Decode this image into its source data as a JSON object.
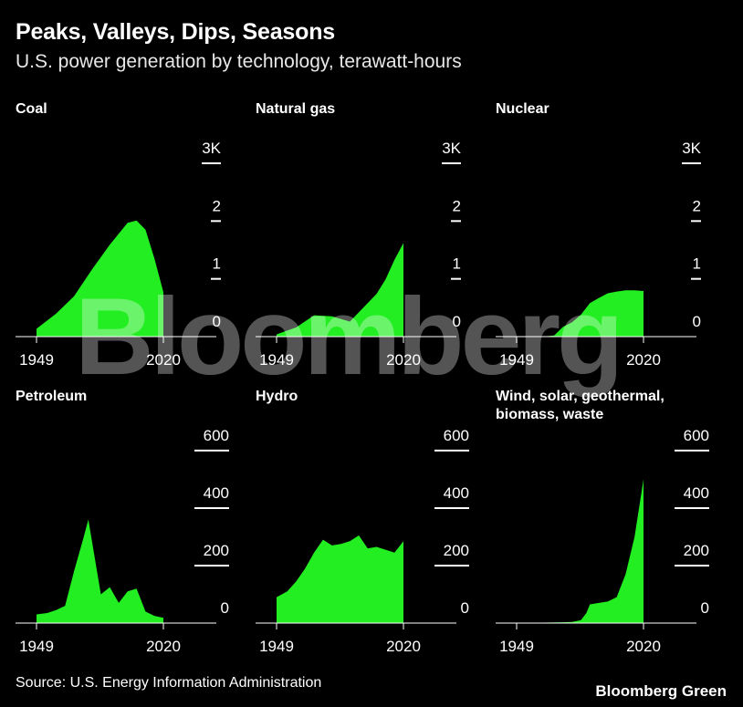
{
  "header": {
    "title": "Peaks, Valleys, Dips, Seasons",
    "subtitle": "U.S. power generation by technology, terawatt-hours"
  },
  "footer": {
    "source": "Source: U.S. Energy Information Administration",
    "brand": "Bloomberg Green"
  },
  "watermark": "Bloomberg",
  "colors": {
    "series": "#22ee22",
    "background": "#000000",
    "text": "#ffffff"
  },
  "chart_data": [
    {
      "type": "area",
      "title": "Coal",
      "x": [
        1949,
        1960,
        1970,
        1980,
        1990,
        2000,
        2005,
        2010,
        2015,
        2020
      ],
      "values": [
        135,
        400,
        700,
        1160,
        1590,
        1970,
        2010,
        1850,
        1350,
        770
      ],
      "ylim": [
        0,
        3000
      ],
      "yticks": [
        "0",
        "1",
        "2",
        "3K"
      ],
      "xticks": [
        "1949",
        "2020"
      ]
    },
    {
      "type": "area",
      "title": "Natural gas",
      "x": [
        1949,
        1960,
        1970,
        1980,
        1990,
        2000,
        2005,
        2010,
        2015,
        2020
      ],
      "values": [
        40,
        160,
        370,
        350,
        260,
        580,
        740,
        990,
        1330,
        1620
      ],
      "ylim": [
        0,
        3000
      ],
      "yticks": [
        "0",
        "1",
        "2",
        "3K"
      ],
      "xticks": [
        "1949",
        "2020"
      ]
    },
    {
      "type": "area",
      "title": "Nuclear",
      "x": [
        1949,
        1957,
        1965,
        1970,
        1975,
        1980,
        1985,
        1990,
        1995,
        2000,
        2005,
        2010,
        2015,
        2020
      ],
      "values": [
        0,
        0,
        5,
        20,
        170,
        250,
        380,
        580,
        670,
        750,
        780,
        800,
        800,
        790
      ],
      "ylim": [
        0,
        3000
      ],
      "yticks": [
        "0",
        "1",
        "2",
        "3K"
      ],
      "xticks": [
        "1949",
        "2020"
      ]
    },
    {
      "type": "area",
      "title": "Petroleum",
      "x": [
        1949,
        1955,
        1960,
        1965,
        1970,
        1975,
        1978,
        1985,
        1990,
        1995,
        2000,
        2005,
        2010,
        2015,
        2020
      ],
      "values": [
        30,
        35,
        45,
        60,
        180,
        290,
        360,
        100,
        125,
        70,
        110,
        120,
        40,
        25,
        18
      ],
      "ylim": [
        0,
        700
      ],
      "yticks": [
        "0",
        "200",
        "400",
        "600"
      ],
      "xticks": [
        "1949",
        "2020"
      ]
    },
    {
      "type": "area",
      "title": "Hydro",
      "x": [
        1949,
        1955,
        1960,
        1965,
        1970,
        1975,
        1980,
        1985,
        1990,
        1995,
        2000,
        2005,
        2010,
        2015,
        2020
      ],
      "values": [
        90,
        110,
        145,
        190,
        245,
        290,
        270,
        275,
        285,
        305,
        260,
        265,
        255,
        245,
        285
      ],
      "ylim": [
        0,
        700
      ],
      "yticks": [
        "0",
        "200",
        "400",
        "600"
      ],
      "xticks": [
        "1949",
        "2020"
      ]
    },
    {
      "type": "area",
      "title": "Wind, solar, geothermal, biomass, waste",
      "x": [
        1949,
        1975,
        1980,
        1985,
        1988,
        1990,
        1995,
        2000,
        2005,
        2010,
        2015,
        2020
      ],
      "values": [
        0,
        3,
        4,
        10,
        35,
        65,
        70,
        75,
        90,
        170,
        300,
        500
      ],
      "ylim": [
        0,
        700
      ],
      "yticks": [
        "0",
        "200",
        "400",
        "600"
      ],
      "xticks": [
        "1949",
        "2020"
      ]
    }
  ]
}
